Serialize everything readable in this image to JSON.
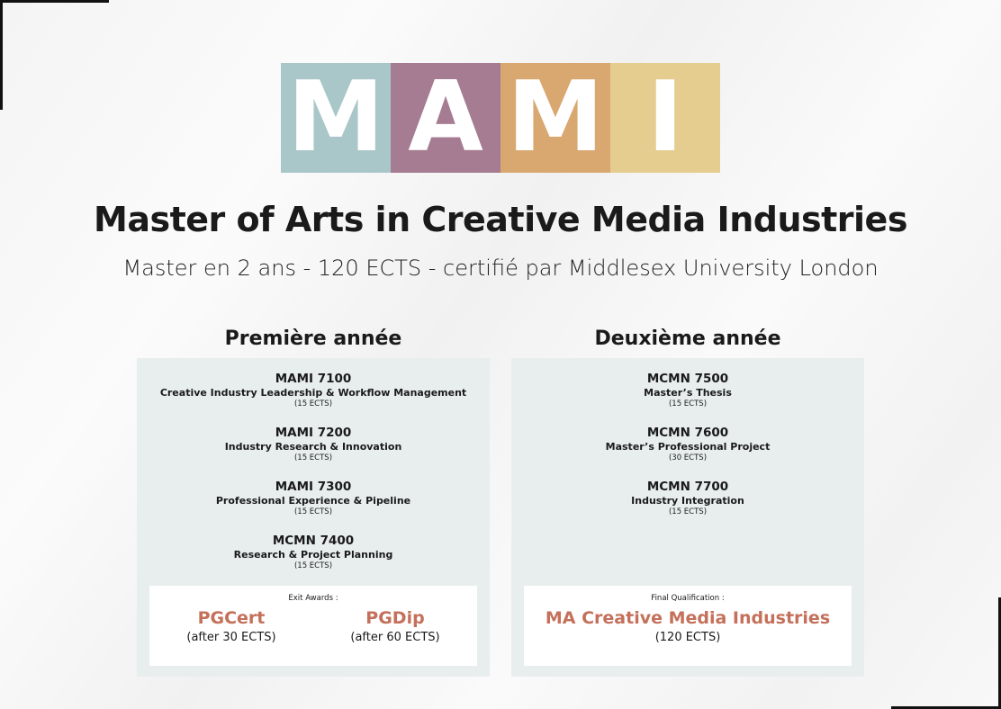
{
  "logo": {
    "letters": [
      "M",
      "A",
      "M",
      "I"
    ],
    "colors": [
      "#a9c7c8",
      "#a67c93",
      "#d9a770",
      "#e5cc8f"
    ]
  },
  "title": "Master of Arts in Creative Media Industries",
  "subtitle": "Master en 2 ans - 120 ECTS - certifié par Middlesex University London",
  "year1": {
    "heading": "Première année",
    "courses": [
      {
        "code": "MAMI 7100",
        "name": "Creative Industry Leadership & Workflow Management",
        "ects": "(15 ECTS)"
      },
      {
        "code": "MAMI 7200",
        "name": "Industry Research & Innovation",
        "ects": "(15 ECTS)"
      },
      {
        "code": "MAMI 7300",
        "name": "Professional Experience & Pipeline",
        "ects": "(15 ECTS)"
      },
      {
        "code": "MCMN 7400",
        "name": "Research & Project Planning",
        "ects": "(15 ECTS)"
      }
    ],
    "awards_label": "Exit Awards :",
    "awards": [
      {
        "title": "PGCert",
        "detail": "(after 30 ECTS)"
      },
      {
        "title": "PGDip",
        "detail": "(after 60 ECTS)"
      }
    ]
  },
  "year2": {
    "heading": "Deuxième année",
    "courses": [
      {
        "code": "MCMN 7500",
        "name": "Master’s Thesis",
        "ects": "(15 ECTS)"
      },
      {
        "code": "MCMN 7600",
        "name": "Master’s Professional Project",
        "ects": "(30 ECTS)"
      },
      {
        "code": "MCMN 7700",
        "name": "Industry Integration",
        "ects": "(15 ECTS)"
      }
    ],
    "awards_label": "Final Qualification :",
    "awards": [
      {
        "title": "MA Creative Media Industries",
        "detail": "(120 ECTS)"
      }
    ]
  },
  "accent_color": "#c4705a"
}
